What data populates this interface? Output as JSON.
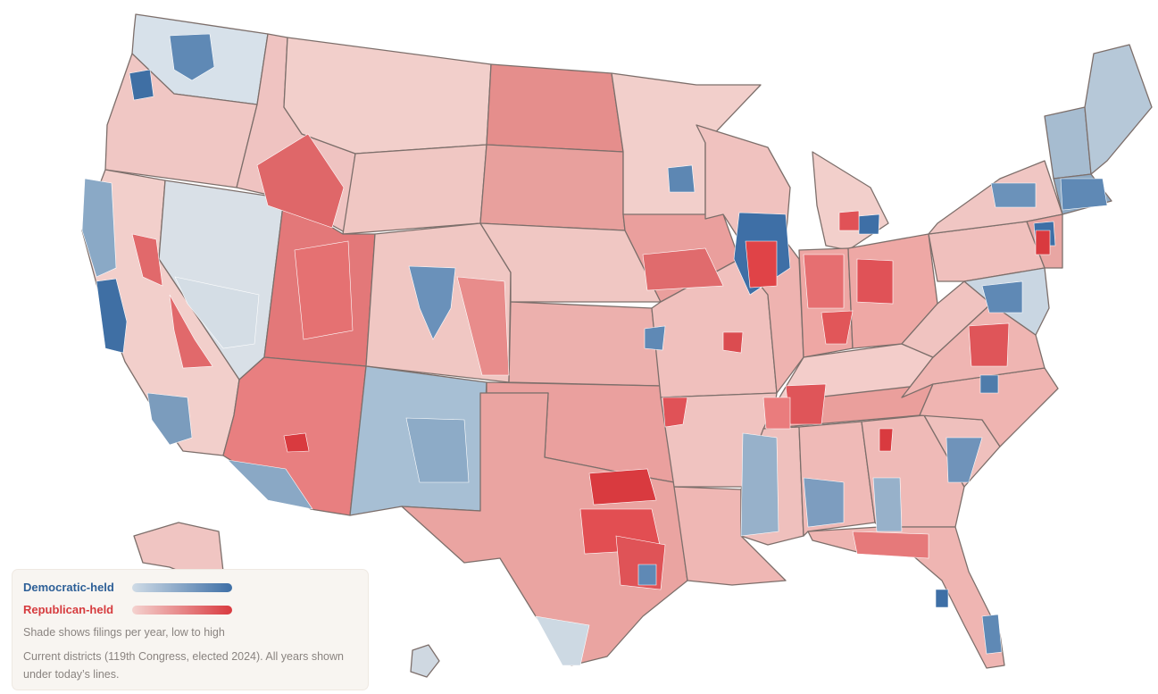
{
  "legend": {
    "dem_label": "Democratic-held",
    "rep_label": "Republican-held",
    "shade_note": "Shade shows filings per year, low to high",
    "district_note": "Current districts (119th Congress, elected 2024). All years shown under today’s lines."
  },
  "colors": {
    "dem_low": "#cfdbe6",
    "dem_high": "#3e6fa6",
    "rep_low": "#f4d2cf",
    "rep_high": "#d93a3f",
    "dem_text": "#2d5f97",
    "rep_text": "#d63b3e",
    "border": "#7d6f6b",
    "legend_bg": "#f8f5f1"
  }
}
